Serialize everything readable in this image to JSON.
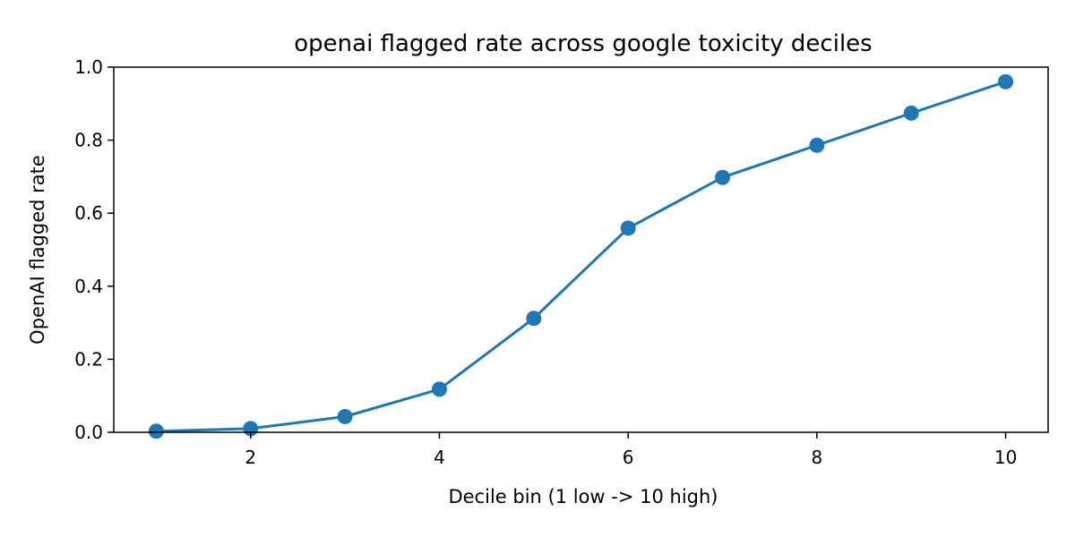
{
  "chart_data": {
    "type": "line",
    "title": "openai flagged rate across google toxicity deciles",
    "xlabel": "Decile bin (1 low -> 10 high)",
    "ylabel": "OpenAI flagged rate",
    "xlim": [
      0.55,
      10.45
    ],
    "ylim": [
      0.0,
      1.0
    ],
    "x_ticks": [
      2,
      4,
      6,
      8,
      10
    ],
    "y_ticks": [
      0.0,
      0.2,
      0.4,
      0.6,
      0.8,
      1.0
    ],
    "x_tick_labels": [
      "2",
      "4",
      "6",
      "8",
      "10"
    ],
    "y_tick_labels": [
      "0.0",
      "0.2",
      "0.4",
      "0.6",
      "0.8",
      "1.0"
    ],
    "grid": false,
    "legend": "none",
    "series": [
      {
        "color": "#1f77b4",
        "marker": "circle",
        "x": [
          1,
          2,
          3,
          4,
          5,
          6,
          7,
          8,
          9,
          10
        ],
        "y": [
          0.003,
          0.01,
          0.043,
          0.118,
          0.312,
          0.559,
          0.698,
          0.786,
          0.874,
          0.96
        ]
      }
    ]
  }
}
